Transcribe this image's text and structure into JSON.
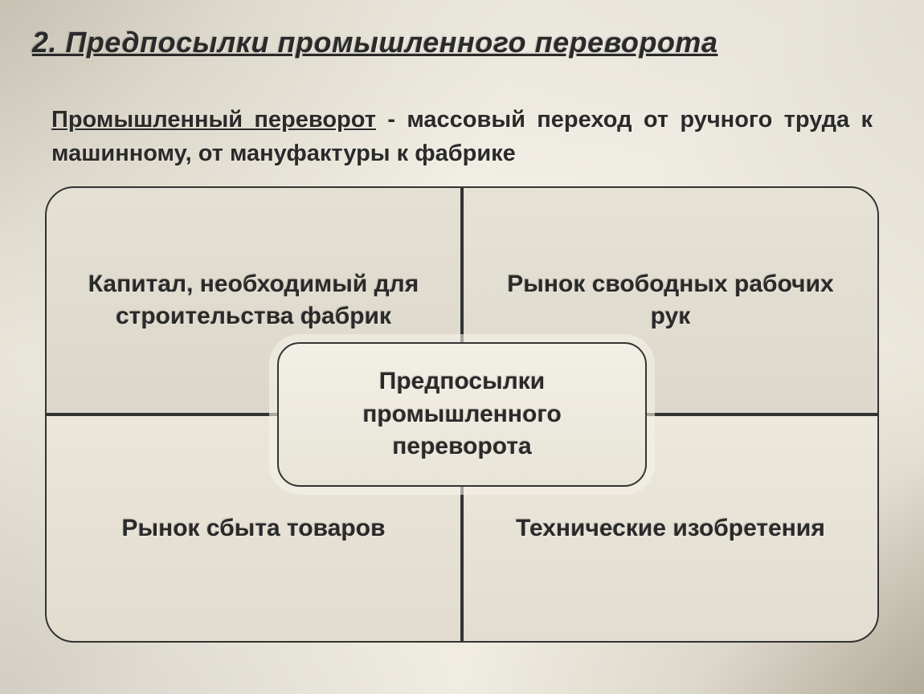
{
  "title": "2. Предпосылки промышленного переворота",
  "definition": {
    "term": "Промышленный переворот",
    "rest": " - массовый переход от ручного труда к машинному, от мануфактуры к фабрике"
  },
  "diagram": {
    "type": "infographic",
    "layout": "quad-with-center",
    "quad_fill_colors": [
      "#e0dccf",
      "#e2ded1",
      "#e6e2d5",
      "#e8e4d7"
    ],
    "center_fill_color": "#ede9de",
    "border_color": "#333333",
    "border_radius_outer": 36,
    "border_radius_center": 28,
    "text_color": "#2a2a2a",
    "font_size": 30,
    "font_weight": "bold",
    "center": "Предпосылки промышленного переворота",
    "cells": {
      "top_left": "Капитал, необходимый для строительства фабрик",
      "top_right": "Рынок свободных рабочих рук",
      "bottom_left": "Рынок сбыта товаров",
      "bottom_right": "Технические изобретения"
    }
  },
  "background": {
    "base_color": "#f0ece0",
    "vignette_color": "#b8b09a"
  }
}
